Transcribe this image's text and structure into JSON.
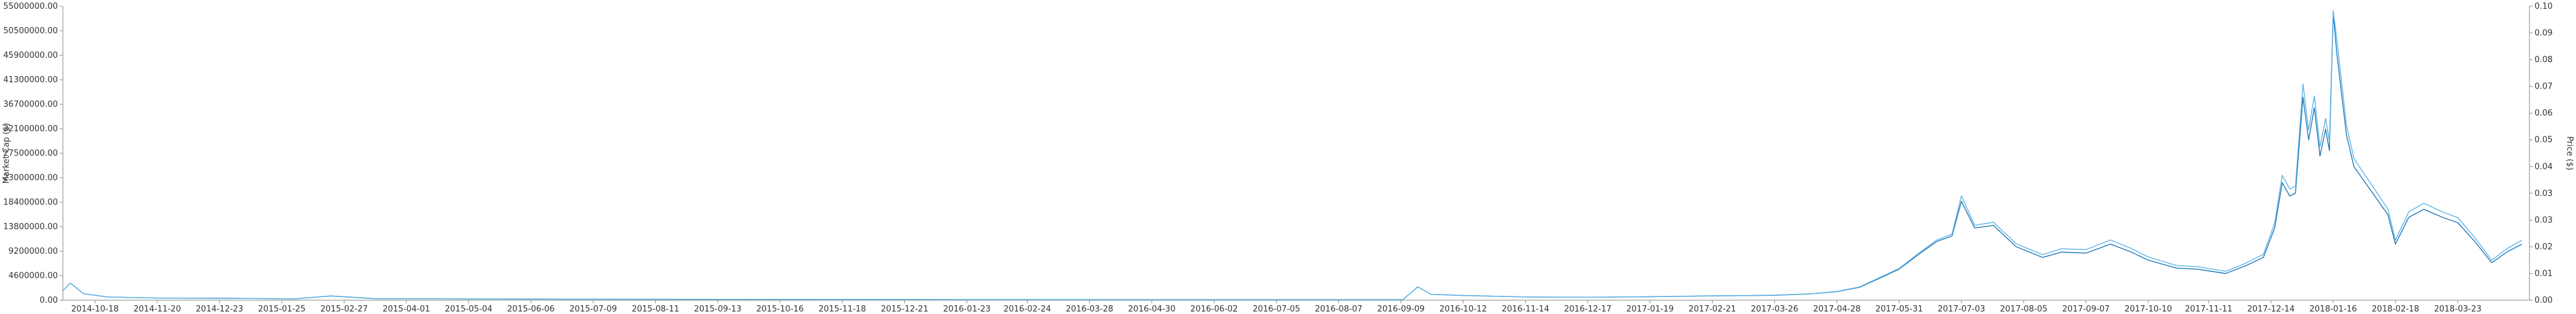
{
  "chart_data": {
    "type": "line",
    "title": "",
    "xlabel": "",
    "ylabel_left": "Market Cap ($)",
    "ylabel_right": "Price ($)",
    "ylim_left": [
      0,
      55000000
    ],
    "ylim_right": [
      0,
      0.1
    ],
    "grid": false,
    "legend": "none",
    "left_ticks": [
      "0.00",
      "4600000.00",
      "9200000.00",
      "13800000.00",
      "18400000.00",
      "23000000.00",
      "27500000.00",
      "32100000.00",
      "36700000.00",
      "41300000.00",
      "45900000.00",
      "50500000.00",
      "55000000.00"
    ],
    "right_ticks": [
      "0.00",
      "0.01",
      "0.02",
      "0.03",
      "0.03",
      "0.04",
      "0.05",
      "0.06",
      "0.07",
      "0.08",
      "0.09",
      "0.10"
    ],
    "x_range": [
      "2014-10-01",
      "2018-04-30"
    ],
    "x_ticks": [
      "2014-10-18",
      "2014-11-20",
      "2014-12-23",
      "2015-01-25",
      "2015-02-27",
      "2015-04-01",
      "2015-05-04",
      "2015-06-06",
      "2015-07-09",
      "2015-08-11",
      "2015-09-13",
      "2015-10-16",
      "2015-11-18",
      "2015-12-21",
      "2016-01-23",
      "2016-02-24",
      "2016-03-28",
      "2016-04-30",
      "2016-06-02",
      "2016-07-05",
      "2016-08-07",
      "2016-09-09",
      "2016-10-12",
      "2016-11-14",
      "2016-12-17",
      "2017-01-19",
      "2017-02-21",
      "2017-03-26",
      "2017-04-28",
      "2017-05-31",
      "2017-07-03",
      "2017-08-05",
      "2017-09-07",
      "2017-10-10",
      "2017-11-11",
      "2017-12-14",
      "2018-01-16",
      "2018-02-18",
      "2018-03-23"
    ],
    "series": [
      {
        "name": "Market Cap",
        "color": "#1f77b4",
        "axis": "left",
        "x": [
          "2014-10-01",
          "2014-10-05",
          "2014-10-12",
          "2014-10-25",
          "2014-11-20",
          "2015-01-01",
          "2015-02-01",
          "2015-02-20",
          "2015-03-15",
          "2015-06-01",
          "2015-09-01",
          "2015-12-01",
          "2016-03-01",
          "2016-06-01",
          "2016-09-10",
          "2016-09-18",
          "2016-09-25",
          "2016-10-10",
          "2016-11-15",
          "2016-12-17",
          "2017-01-19",
          "2017-02-21",
          "2017-03-26",
          "2017-04-15",
          "2017-04-28",
          "2017-05-10",
          "2017-05-20",
          "2017-05-31",
          "2017-06-10",
          "2017-06-20",
          "2017-06-28",
          "2017-07-03",
          "2017-07-10",
          "2017-07-20",
          "2017-08-01",
          "2017-08-15",
          "2017-08-25",
          "2017-09-07",
          "2017-09-20",
          "2017-10-01",
          "2017-10-10",
          "2017-10-25",
          "2017-11-05",
          "2017-11-20",
          "2017-12-01",
          "2017-12-10",
          "2017-12-16",
          "2017-12-20",
          "2017-12-24",
          "2017-12-27",
          "2017-12-31",
          "2018-01-03",
          "2018-01-06",
          "2018-01-09",
          "2018-01-12",
          "2018-01-14",
          "2018-01-16",
          "2018-01-18",
          "2018-01-21",
          "2018-01-23",
          "2018-01-27",
          "2018-02-01",
          "2018-02-06",
          "2018-02-10",
          "2018-02-14",
          "2018-02-18",
          "2018-02-25",
          "2018-03-05",
          "2018-03-15",
          "2018-03-23",
          "2018-04-01",
          "2018-04-10",
          "2018-04-18",
          "2018-04-26"
        ],
        "values": [
          1800000,
          3200000,
          1200000,
          600000,
          400000,
          350000,
          250000,
          800000,
          300000,
          200000,
          150000,
          120000,
          100000,
          90000,
          90000,
          2500000,
          1100000,
          900000,
          600000,
          550000,
          650000,
          800000,
          900000,
          1200000,
          1600000,
          2400000,
          4000000,
          5800000,
          8500000,
          11000000,
          12000000,
          18500000,
          13500000,
          14000000,
          10000000,
          8000000,
          9000000,
          8800000,
          10500000,
          9000000,
          7500000,
          6000000,
          5800000,
          5000000,
          6500000,
          8000000,
          13500000,
          22000000,
          19500000,
          20000000,
          38000000,
          30000000,
          36000000,
          27000000,
          32000000,
          28000000,
          53500000,
          46000000,
          37000000,
          31000000,
          25000000,
          22500000,
          20000000,
          18000000,
          16000000,
          10500000,
          15500000,
          17000000,
          15500000,
          14500000,
          11000000,
          7000000,
          9000000,
          10500000
        ]
      },
      {
        "name": "Price",
        "color": "#5fb3e8",
        "axis": "right",
        "x": [
          "2014-10-01",
          "2014-10-05",
          "2014-10-12",
          "2014-10-25",
          "2014-11-20",
          "2015-01-01",
          "2015-02-01",
          "2015-02-20",
          "2015-03-15",
          "2015-06-01",
          "2015-09-01",
          "2015-12-01",
          "2016-03-01",
          "2016-06-01",
          "2016-09-10",
          "2016-09-18",
          "2016-09-25",
          "2016-10-10",
          "2016-11-15",
          "2016-12-17",
          "2017-01-19",
          "2017-02-21",
          "2017-03-26",
          "2017-04-15",
          "2017-04-28",
          "2017-05-10",
          "2017-05-20",
          "2017-05-31",
          "2017-06-10",
          "2017-06-20",
          "2017-06-28",
          "2017-07-03",
          "2017-07-10",
          "2017-07-20",
          "2017-08-01",
          "2017-08-15",
          "2017-08-25",
          "2017-09-07",
          "2017-09-20",
          "2017-10-01",
          "2017-10-10",
          "2017-10-25",
          "2017-11-05",
          "2017-11-20",
          "2017-12-01",
          "2017-12-10",
          "2017-12-16",
          "2017-12-20",
          "2017-12-24",
          "2017-12-27",
          "2017-12-31",
          "2018-01-03",
          "2018-01-06",
          "2018-01-09",
          "2018-01-12",
          "2018-01-14",
          "2018-01-16",
          "2018-01-18",
          "2018-01-21",
          "2018-01-23",
          "2018-01-27",
          "2018-02-01",
          "2018-02-06",
          "2018-02-10",
          "2018-02-14",
          "2018-02-18",
          "2018-02-25",
          "2018-03-05",
          "2018-03-15",
          "2018-03-23",
          "2018-04-01",
          "2018-04-10",
          "2018-04-18",
          "2018-04-26"
        ],
        "values": [
          0.0033,
          0.0058,
          0.0022,
          0.0011,
          0.0007,
          0.0006,
          0.0005,
          0.0014,
          0.0005,
          0.0004,
          0.0003,
          0.0002,
          0.0002,
          0.0002,
          0.0002,
          0.0045,
          0.002,
          0.0016,
          0.0011,
          0.001,
          0.0012,
          0.0015,
          0.0017,
          0.0022,
          0.003,
          0.0045,
          0.0075,
          0.0108,
          0.0158,
          0.0205,
          0.0225,
          0.0355,
          0.0255,
          0.0265,
          0.0192,
          0.0155,
          0.0175,
          0.0172,
          0.0205,
          0.0176,
          0.0147,
          0.0118,
          0.0114,
          0.0098,
          0.0127,
          0.0156,
          0.0262,
          0.0425,
          0.0378,
          0.0388,
          0.0735,
          0.058,
          0.0695,
          0.0522,
          0.0618,
          0.054,
          0.0985,
          0.0885,
          0.0712,
          0.0598,
          0.0482,
          0.0434,
          0.0387,
          0.0348,
          0.031,
          0.0204,
          0.03,
          0.033,
          0.03,
          0.0281,
          0.0213,
          0.0136,
          0.0175,
          0.0204
        ]
      }
    ]
  }
}
